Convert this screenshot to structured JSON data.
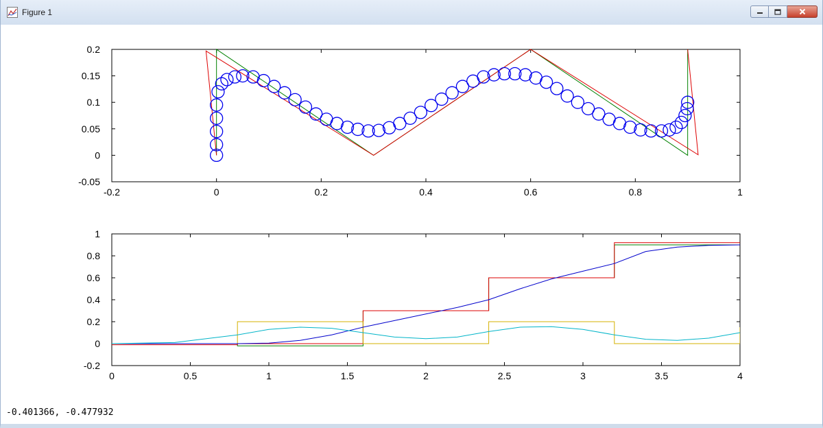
{
  "window": {
    "title": "Figure 1",
    "buttons": {
      "minimize": "minimize-icon",
      "maximize": "maximize-icon",
      "close": "close-icon"
    }
  },
  "status": {
    "coords": "-0.401366, -0.477932"
  },
  "chart_data": [
    {
      "type": "line",
      "xlim": [
        -0.2,
        1
      ],
      "ylim": [
        -0.05,
        0.2
      ],
      "xticks": [
        -0.2,
        0,
        0.2,
        0.4,
        0.6,
        0.8,
        1
      ],
      "yticks": [
        -0.05,
        0,
        0.05,
        0.1,
        0.15,
        0.2
      ],
      "xtick_labels": [
        "-0.2",
        "0",
        "0.2",
        "0.4",
        "0.6",
        "0.8",
        "1"
      ],
      "ytick_labels": [
        "-0.05",
        "0",
        "0.05",
        "0.1",
        "0.15",
        "0.2"
      ],
      "series": [
        {
          "color": "#008000",
          "style": "line",
          "x": [
            0,
            0,
            0.3,
            0.6,
            0.9,
            0.9
          ],
          "y": [
            0,
            0.2,
            0,
            0.2,
            0,
            0.2
          ]
        },
        {
          "color": "#dd0000",
          "style": "line",
          "x": [
            0,
            -0.02,
            0.3,
            0.6,
            0.92,
            0.9
          ],
          "y": [
            0,
            0.197,
            0,
            0.2,
            0.001,
            0.2
          ]
        },
        {
          "color": "#0000ee",
          "style": "circles",
          "x": [
            0,
            0,
            0,
            0,
            0,
            0.003,
            0.01,
            0.02,
            0.035,
            0.05,
            0.07,
            0.09,
            0.11,
            0.13,
            0.15,
            0.17,
            0.19,
            0.21,
            0.23,
            0.25,
            0.27,
            0.29,
            0.31,
            0.33,
            0.35,
            0.37,
            0.39,
            0.41,
            0.43,
            0.45,
            0.47,
            0.49,
            0.51,
            0.53,
            0.55,
            0.57,
            0.59,
            0.61,
            0.63,
            0.65,
            0.67,
            0.69,
            0.71,
            0.73,
            0.75,
            0.77,
            0.79,
            0.81,
            0.83,
            0.85,
            0.865,
            0.878,
            0.888,
            0.895,
            0.899,
            0.9
          ],
          "y": [
            0,
            0.02,
            0.045,
            0.07,
            0.095,
            0.12,
            0.135,
            0.143,
            0.148,
            0.15,
            0.148,
            0.141,
            0.13,
            0.118,
            0.105,
            0.091,
            0.078,
            0.068,
            0.06,
            0.053,
            0.049,
            0.046,
            0.047,
            0.052,
            0.06,
            0.07,
            0.081,
            0.094,
            0.106,
            0.118,
            0.13,
            0.14,
            0.148,
            0.152,
            0.154,
            0.154,
            0.152,
            0.146,
            0.138,
            0.126,
            0.112,
            0.1,
            0.088,
            0.078,
            0.068,
            0.06,
            0.053,
            0.048,
            0.046,
            0.046,
            0.048,
            0.053,
            0.062,
            0.075,
            0.088,
            0.1
          ]
        }
      ]
    },
    {
      "type": "line",
      "xlim": [
        0,
        4
      ],
      "ylim": [
        -0.2,
        1
      ],
      "xticks": [
        0,
        0.5,
        1,
        1.5,
        2,
        2.5,
        3,
        3.5,
        4
      ],
      "yticks": [
        -0.2,
        0,
        0.2,
        0.4,
        0.6,
        0.8,
        1
      ],
      "xtick_labels": [
        "0",
        "0.5",
        "1",
        "1.5",
        "2",
        "2.5",
        "3",
        "3.5",
        "4"
      ],
      "ytick_labels": [
        "-0.2",
        "0",
        "0.2",
        "0.4",
        "0.6",
        "0.8",
        "1"
      ],
      "series": [
        {
          "color": "#008000",
          "style": "step",
          "x": [
            0,
            0.8,
            0.8,
            1.6,
            1.6,
            2.4,
            2.4,
            3.2,
            3.2,
            4
          ],
          "y": [
            0,
            0,
            -0.02,
            -0.02,
            0.3,
            0.3,
            0.6,
            0.6,
            0.9,
            0.9
          ]
        },
        {
          "color": "#dd0000",
          "style": "step",
          "x": [
            0,
            0.8,
            0.8,
            1.6,
            1.6,
            2.4,
            2.4,
            3.2,
            3.2,
            4
          ],
          "y": [
            -0.01,
            -0.01,
            0,
            0,
            0.3,
            0.3,
            0.6,
            0.6,
            0.92,
            0.92
          ]
        },
        {
          "color": "#d4b000",
          "style": "step",
          "x": [
            0,
            0.8,
            0.8,
            1.6,
            1.6,
            2.4,
            2.4,
            3.2,
            3.2,
            4,
            4
          ],
          "y": [
            0,
            0,
            0.2,
            0.2,
            0,
            0,
            0.2,
            0.2,
            0,
            0,
            0.15
          ]
        },
        {
          "color": "#0000cc",
          "style": "line",
          "x": [
            0,
            0.4,
            0.8,
            1,
            1.2,
            1.4,
            1.6,
            1.8,
            2,
            2.2,
            2.4,
            2.6,
            2.8,
            3,
            3.2,
            3.4,
            3.6,
            3.8,
            4
          ],
          "y": [
            0,
            0,
            0,
            0.005,
            0.03,
            0.08,
            0.15,
            0.21,
            0.27,
            0.33,
            0.4,
            0.5,
            0.59,
            0.66,
            0.73,
            0.84,
            0.88,
            0.895,
            0.9
          ]
        },
        {
          "color": "#00b4c8",
          "style": "line",
          "x": [
            0,
            0.4,
            0.8,
            1,
            1.2,
            1.4,
            1.6,
            1.8,
            2,
            2.2,
            2.4,
            2.6,
            2.8,
            3,
            3.2,
            3.4,
            3.6,
            3.8,
            4
          ],
          "y": [
            0,
            0.01,
            0.08,
            0.13,
            0.15,
            0.14,
            0.1,
            0.06,
            0.045,
            0.06,
            0.11,
            0.15,
            0.155,
            0.13,
            0.08,
            0.04,
            0.03,
            0.05,
            0.1
          ]
        }
      ]
    }
  ]
}
